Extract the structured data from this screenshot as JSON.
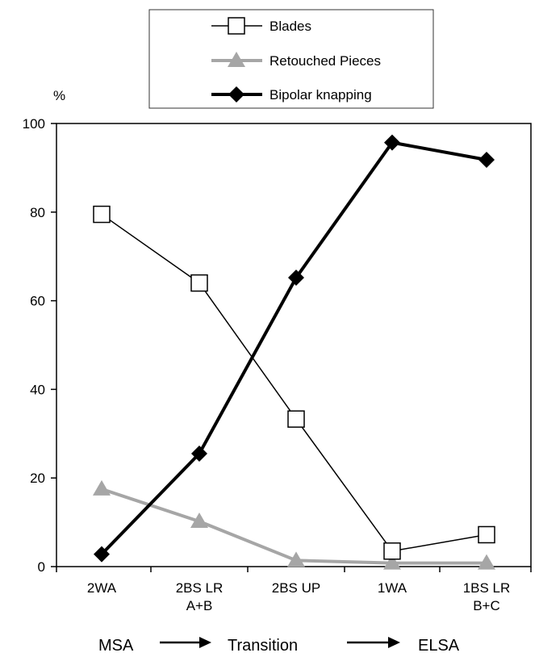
{
  "chart_data": {
    "type": "line",
    "title": "",
    "ylabel": "%",
    "xlabel": "",
    "categories": [
      [
        "2WA"
      ],
      [
        "2BS LR",
        "A+B"
      ],
      [
        "2BS UP"
      ],
      [
        "1WA"
      ],
      [
        "1BS LR",
        "B+C"
      ]
    ],
    "ylim": [
      0,
      100
    ],
    "yticks": [
      0,
      20,
      40,
      60,
      80,
      100
    ],
    "grid": false,
    "legend_position": "top-center",
    "series": [
      {
        "name": "Blades",
        "values": [
          79.5,
          64,
          33.3,
          3.5,
          7.2
        ],
        "color": "#000000",
        "marker": "square-open",
        "line_width": "thin"
      },
      {
        "name": "Retouched Pieces",
        "values": [
          17.5,
          10.2,
          1.4,
          0.8,
          0.8
        ],
        "color": "#a6a6a6",
        "marker": "triangle-filled",
        "line_width": "thick"
      },
      {
        "name": "Bipolar knapping",
        "values": [
          2.8,
          25.5,
          65.2,
          95.7,
          91.8
        ],
        "color": "#000000",
        "marker": "diamond-filled",
        "line_width": "thick"
      }
    ],
    "sequence": [
      "MSA",
      "Transition",
      "ELSA"
    ]
  }
}
